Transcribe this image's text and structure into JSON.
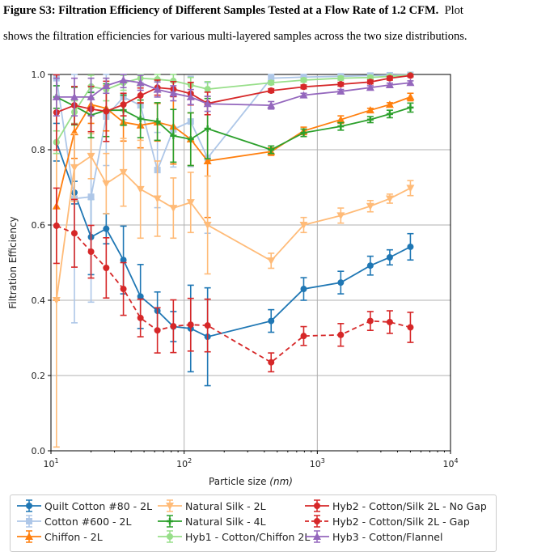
{
  "caption": {
    "figure_label": "Figure S3: Filtration Efficiency of Different Samples Tested at a Flow Rate of 1.2 CFM.",
    "text_line1": "Plot",
    "text_line2": "shows the filtration efficiencies for various multi-layered samples across the two size distributions."
  },
  "chart_data": {
    "type": "line",
    "title": "",
    "xlabel": "Particle size",
    "xlabel_unit": "(nm)",
    "ylabel": "Filtration Efficiency",
    "xscale": "log",
    "xlim": [
      10,
      10000
    ],
    "ylim": [
      0.0,
      1.0
    ],
    "xticks": [
      10,
      100,
      1000,
      10000
    ],
    "xtick_labels": [
      {
        "base": "10",
        "exp": "1"
      },
      {
        "base": "10",
        "exp": "2"
      },
      {
        "base": "10",
        "exp": "3"
      },
      {
        "base": "10",
        "exp": "4"
      }
    ],
    "yticks": [
      0.0,
      0.2,
      0.4,
      0.6,
      0.8,
      1.0
    ],
    "ytick_labels": [
      "0.0",
      "0.2",
      "0.4",
      "0.6",
      "0.8",
      "1.0"
    ],
    "grid": true,
    "legend_placement": "bottom",
    "x": [
      11,
      15,
      20,
      26,
      35,
      47,
      63,
      83,
      112,
      150,
      450,
      790,
      1500,
      2500,
      3500,
      5000
    ],
    "series": [
      {
        "name": "Quilt Cotton #80 - 2L",
        "color": "#1f77b4",
        "marker": "circle",
        "dash": false,
        "values": [
          0.82,
          0.686,
          0.568,
          0.59,
          0.507,
          0.41,
          0.372,
          0.33,
          0.325,
          0.303,
          0.345,
          0.43,
          0.447,
          0.492,
          0.514,
          0.542
        ],
        "err": [
          0.05,
          0.03,
          0.1,
          0.04,
          0.09,
          0.085,
          0.05,
          0.04,
          0.115,
          0.13,
          0.03,
          0.03,
          0.03,
          0.025,
          0.02,
          0.035
        ]
      },
      {
        "name": "Cotton #600 - 2L",
        "color": "#aec7e8",
        "marker": "square",
        "dash": false,
        "values": [
          0.99,
          0.67,
          0.675,
          0.888,
          0.94,
          0.918,
          0.746,
          0.854,
          0.875,
          0.778,
          0.99,
          0.993,
          0.995,
          0.997,
          0.998,
          0.999
        ],
        "err": [
          0.02,
          0.33,
          0.28,
          0.13,
          0.06,
          0.06,
          0.1,
          0.1,
          0.12,
          0.2,
          0.01,
          0.01,
          0.005,
          0.005,
          0.005,
          0.003
        ]
      },
      {
        "name": "Chiffon - 2L",
        "color": "#ff7f0e",
        "marker": "triangle-up",
        "dash": false,
        "values": [
          0.65,
          0.847,
          0.92,
          0.91,
          0.873,
          0.865,
          0.873,
          0.862,
          0.828,
          0.77,
          0.795,
          0.85,
          0.88,
          0.905,
          0.92,
          0.94
        ],
        "err": [
          0.25,
          0.07,
          0.05,
          0.06,
          0.05,
          0.06,
          0.05,
          0.1,
          0.07,
          0.15,
          0.01,
          0.01,
          0.01,
          0.005,
          0.005,
          0.01
        ]
      },
      {
        "name": "Natural Silk - 2L",
        "color": "#ffbb78",
        "marker": "triangle-down",
        "dash": false,
        "values": [
          0.4,
          0.753,
          0.783,
          0.71,
          0.74,
          0.695,
          0.67,
          0.645,
          0.66,
          0.6,
          0.505,
          0.6,
          0.625,
          0.65,
          0.67,
          0.698
        ],
        "err": [
          0.39,
          0.09,
          0.06,
          0.08,
          0.09,
          0.13,
          0.1,
          0.08,
          0.08,
          0.13,
          0.02,
          0.02,
          0.02,
          0.015,
          0.012,
          0.02
        ]
      },
      {
        "name": "Natural Silk - 4L",
        "color": "#2ca02c",
        "marker": "plus",
        "dash": false,
        "values": [
          0.94,
          0.916,
          0.892,
          0.905,
          0.905,
          0.882,
          0.875,
          0.837,
          0.828,
          0.856,
          0.8,
          0.845,
          0.862,
          0.88,
          0.895,
          0.912
        ],
        "err": [
          0.03,
          0.05,
          0.06,
          0.07,
          0.04,
          0.05,
          0.05,
          0.07,
          0.07,
          0.08,
          0.01,
          0.01,
          0.01,
          0.008,
          0.01,
          0.012
        ]
      },
      {
        "name": "Hyb1 - Cotton/Chiffon 2L",
        "color": "#98df8a",
        "marker": "circle",
        "dash": false,
        "values": [
          0.82,
          0.9,
          0.968,
          0.96,
          0.978,
          0.99,
          0.987,
          0.983,
          0.972,
          0.961,
          0.978,
          0.985,
          0.99,
          0.992,
          0.995,
          0.998
        ],
        "err": [
          0.03,
          0.03,
          0.03,
          0.03,
          0.02,
          0.02,
          0.02,
          0.02,
          0.02,
          0.02,
          0.005,
          0.005,
          0.005,
          0.005,
          0.003,
          0.003
        ]
      },
      {
        "name": "Hyb2 - Cotton/Silk 2L - No Gap",
        "color": "#d62728",
        "marker": "circle",
        "dash": false,
        "values": [
          0.899,
          0.918,
          0.908,
          0.902,
          0.92,
          0.944,
          0.965,
          0.961,
          0.949,
          0.923,
          0.957,
          0.967,
          0.974,
          0.98,
          0.99,
          0.997
        ],
        "err": [
          0.1,
          0.05,
          0.06,
          0.08,
          0.03,
          0.02,
          0.02,
          0.02,
          0.03,
          0.03,
          0.005,
          0.005,
          0.005,
          0.005,
          0.005,
          0.003
        ]
      },
      {
        "name": "Hyb2 - Cotton/Silk 2L - Gap",
        "color": "#d62728",
        "marker": "circle",
        "dash": true,
        "values": [
          0.598,
          0.578,
          0.529,
          0.486,
          0.43,
          0.353,
          0.32,
          0.331,
          0.335,
          0.333,
          0.235,
          0.305,
          0.308,
          0.345,
          0.342,
          0.328
        ],
        "err": [
          0.1,
          0.09,
          0.07,
          0.08,
          0.07,
          0.05,
          0.06,
          0.07,
          0.07,
          0.07,
          0.025,
          0.025,
          0.03,
          0.025,
          0.03,
          0.04
        ]
      },
      {
        "name": "Hyb3 - Cotton/Flannel",
        "color": "#9467bd",
        "marker": "triangle-up",
        "dash": false,
        "values": [
          0.94,
          0.94,
          0.94,
          0.97,
          0.985,
          0.978,
          0.96,
          0.95,
          0.94,
          0.922,
          0.918,
          0.945,
          0.955,
          0.965,
          0.972,
          0.978
        ],
        "err": [
          0.05,
          0.05,
          0.05,
          0.02,
          0.02,
          0.02,
          0.02,
          0.02,
          0.02,
          0.02,
          0.01,
          0.005,
          0.005,
          0.005,
          0.005,
          0.005
        ]
      }
    ]
  }
}
